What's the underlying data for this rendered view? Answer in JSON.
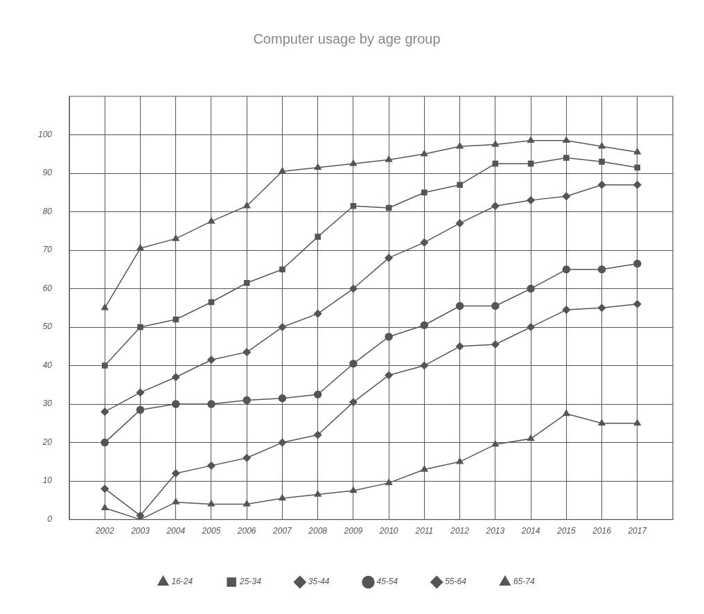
{
  "chart_data": {
    "type": "line",
    "title": "Computer usage by age group",
    "x": [
      2002,
      2003,
      2004,
      2005,
      2006,
      2007,
      2008,
      2009,
      2010,
      2011,
      2012,
      2013,
      2014,
      2015,
      2016,
      2017
    ],
    "xlim": [
      2001,
      2018
    ],
    "xticks": [
      2002,
      2003,
      2004,
      2005,
      2006,
      2007,
      2008,
      2009,
      2010,
      2011,
      2012,
      2013,
      2014,
      2015,
      2016,
      2017
    ],
    "ylim": [
      0,
      110
    ],
    "yticks": [
      0,
      10,
      20,
      30,
      40,
      50,
      60,
      70,
      80,
      90,
      100
    ],
    "grid": true,
    "legend": "bottom",
    "line_style": "solid",
    "series": [
      {
        "name": "16-24",
        "color": "#555555",
        "marker": "triangle",
        "values": [
          55,
          70.5,
          73,
          77.5,
          81.5,
          90.5,
          91.5,
          92.5,
          93.5,
          95,
          97,
          97.5,
          98.5,
          98.5,
          97,
          95.5
        ]
      },
      {
        "name": "25-34",
        "color": "#555555",
        "marker": "square",
        "values": [
          40,
          50,
          52,
          56.5,
          61.5,
          65,
          73.5,
          81.5,
          81,
          85,
          87,
          92.5,
          92.5,
          94,
          93,
          91.5
        ]
      },
      {
        "name": "35-44",
        "color": "#555555",
        "marker": "diamond",
        "values": [
          28,
          33,
          37,
          41.5,
          43.5,
          50,
          53.5,
          60,
          68,
          72,
          77,
          81.5,
          83,
          84,
          87,
          87
        ]
      },
      {
        "name": "45-54",
        "color": "#555555",
        "marker": "circle",
        "values": [
          20,
          28.5,
          30,
          30,
          31,
          31.5,
          32.5,
          40.5,
          47.5,
          50.5,
          55.5,
          55.5,
          60,
          65,
          65,
          66.5
        ]
      },
      {
        "name": "55-64",
        "color": "#555555",
        "marker": "diamond",
        "values": [
          8,
          1,
          12,
          14,
          16,
          20,
          22,
          30.5,
          37.5,
          40,
          45,
          45.5,
          50,
          54.5,
          55,
          56
        ]
      },
      {
        "name": "65-74",
        "color": "#555555",
        "marker": "triangle",
        "values": [
          3,
          0,
          4.5,
          4,
          4,
          5.5,
          6.5,
          7.5,
          9.5,
          13,
          15,
          19.5,
          21,
          27.5,
          25,
          25
        ]
      }
    ]
  }
}
